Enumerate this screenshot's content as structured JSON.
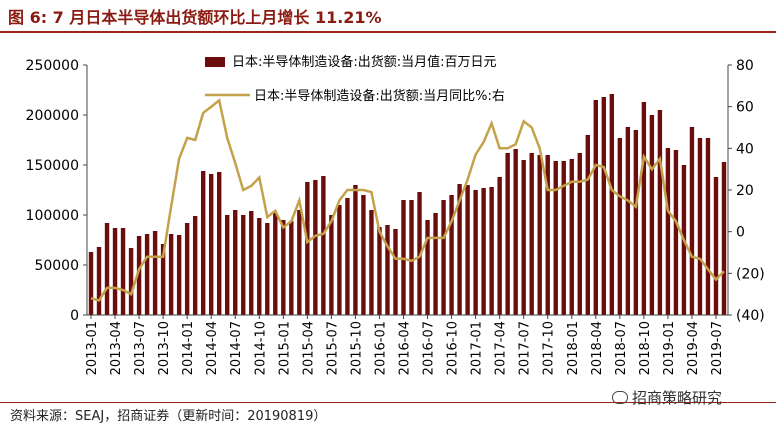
{
  "figure_title": "图 6:  7 月日本半导体出货额环比上月增长 11.21%",
  "source_note": "资料来源：SEAJ，招商证券（更新时间：20190819）",
  "watermark": "招商策略研究",
  "colors": {
    "bar": "#6b0d0d",
    "line": "#c4a24a",
    "accent": "#9b2318"
  },
  "chart_data": {
    "type": "bar+line",
    "legend_placement": "top-center",
    "grid": false,
    "x_tick_labels": [
      "2013-01",
      "2013-04",
      "2013-07",
      "2013-10",
      "2014-01",
      "2014-04",
      "2014-07",
      "2014-10",
      "2015-01",
      "2015-04",
      "2015-07",
      "2015-10",
      "2016-01",
      "2016-04",
      "2016-07",
      "2016-10",
      "2017-01",
      "2017-04",
      "2017-07",
      "2017-10",
      "2018-01",
      "2018-04",
      "2018-07",
      "2018-10",
      "2019-01",
      "2019-04",
      "2019-07"
    ],
    "y_left": {
      "ylim": [
        0,
        250000
      ],
      "ticks": [
        "0",
        "50000",
        "100000",
        "150000",
        "200000",
        "250000"
      ]
    },
    "y_right": {
      "ylim": [
        -40,
        80
      ],
      "ticks": [
        "(40)",
        "(20)",
        "0",
        "20",
        "40",
        "60",
        "80"
      ]
    },
    "series": [
      {
        "name": "日本:半导体制造设备:出货额:当月值:百万日元",
        "axis": "left",
        "type": "bar",
        "values": [
          63000,
          68000,
          92000,
          87000,
          87000,
          67000,
          79000,
          81000,
          84000,
          71000,
          81000,
          80000,
          92000,
          99000,
          144000,
          141000,
          143000,
          100000,
          105000,
          100000,
          104000,
          97000,
          92000,
          102000,
          95000,
          94000,
          105000,
          133000,
          135000,
          139000,
          100000,
          110000,
          117000,
          130000,
          120000,
          105000,
          88000,
          90000,
          86000,
          115000,
          115000,
          123000,
          95000,
          102000,
          115000,
          120000,
          131000,
          130000,
          125000,
          127000,
          128000,
          138000,
          162000,
          166000,
          155000,
          162000,
          160000,
          160000,
          154000,
          154000,
          156000,
          162000,
          180000,
          215000,
          218000,
          221000,
          177000,
          188000,
          185000,
          213000,
          200000,
          205000,
          167000,
          165000,
          150000,
          188000,
          177000,
          177000,
          138000,
          153000
        ]
      },
      {
        "name": "日本:半导体制造设备:出货额:当月同比%:右",
        "axis": "right",
        "type": "line",
        "values": [
          -32,
          -33,
          -27,
          -27,
          -28,
          -30,
          -18,
          -12,
          -12,
          -12,
          12,
          35,
          45,
          44,
          57,
          60,
          63,
          45,
          33,
          20,
          22,
          26,
          7,
          10,
          2,
          5,
          15,
          -5,
          -2,
          -1,
          5,
          15,
          20,
          20,
          20,
          19,
          0,
          -7,
          -13,
          -13,
          -14,
          -12,
          -3,
          -3,
          -3,
          5,
          15,
          25,
          37,
          43,
          52,
          40,
          40,
          42,
          53,
          50,
          40,
          20,
          20,
          22,
          24,
          24,
          25,
          32,
          31,
          20,
          17,
          15,
          12,
          36,
          30,
          35,
          10,
          5,
          -4,
          -12,
          -13,
          -18,
          -23,
          -19
        ]
      }
    ]
  }
}
